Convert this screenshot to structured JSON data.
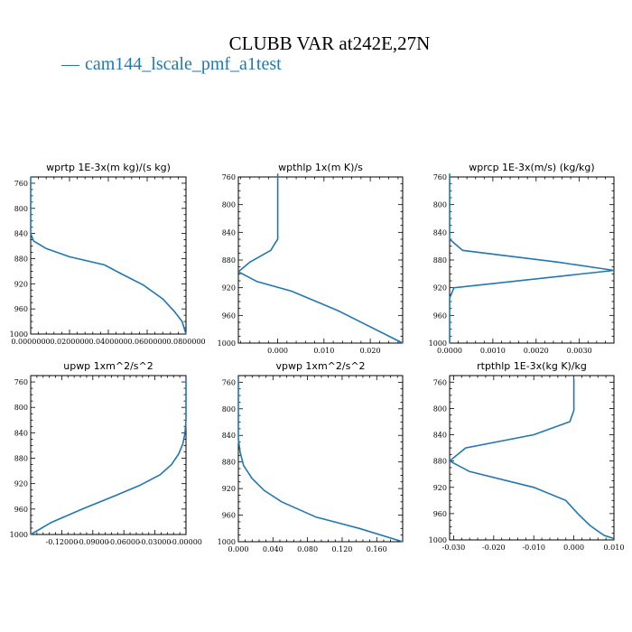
{
  "title": "CLUBB VAR at242E,27N",
  "legend": {
    "label": "cam144_lscale_pmf_a1test",
    "color": "#1f77b4"
  },
  "chart_data": [
    {
      "type": "line",
      "title": "wprtp  1E-3x(m kg)/(s kg)",
      "xlim": [
        0,
        0.08
      ],
      "ylim": [
        1000,
        750
      ],
      "xticks": [
        0,
        0.02,
        0.04,
        0.06,
        0.08
      ],
      "xtick_labels": [
        "0.0000000",
        "0.0200000",
        "0.0400000",
        "0.0600000",
        "0.0800000"
      ],
      "yticks": [
        760,
        800,
        840,
        880,
        920,
        960,
        1000
      ],
      "series": [
        {
          "x": [
            0.0,
            0.0,
            0.0015,
            0.008,
            0.02,
            0.038,
            0.046,
            0.058,
            0.068,
            0.074,
            0.078,
            0.08
          ],
          "y": [
            750,
            840,
            852,
            864,
            877,
            890,
            903,
            922,
            944,
            964,
            980,
            1000
          ]
        }
      ]
    },
    {
      "type": "line",
      "title": "wpthlp  1x(m K)/s",
      "xlim": [
        -0.0085,
        0.027
      ],
      "ylim": [
        1000,
        760
      ],
      "xticks": [
        0,
        0.01,
        0.02
      ],
      "xtick_labels": [
        "0.000",
        "0.010",
        "0.020"
      ],
      "yticks": [
        760,
        800,
        840,
        880,
        920,
        960,
        1000
      ],
      "series": [
        {
          "x": [
            0.0,
            0.0,
            -0.0005,
            -0.0015,
            -0.006,
            -0.0085,
            -0.0045,
            0.003,
            0.013,
            0.027
          ],
          "y": [
            755,
            850,
            855,
            866,
            883,
            897,
            911,
            925,
            953,
            1000
          ]
        }
      ]
    },
    {
      "type": "line",
      "title": "wprcp  1E-3x(m/s) (kg/kg)",
      "xlim": [
        0,
        0.0038
      ],
      "ylim": [
        1000,
        760
      ],
      "xticks": [
        0,
        0.001,
        0.002,
        0.003
      ],
      "xtick_labels": [
        "0.0000",
        "0.0010",
        "0.0020",
        "0.0030"
      ],
      "yticks": [
        760,
        800,
        840,
        880,
        920,
        960,
        1000
      ],
      "series": [
        {
          "x": [
            0.0,
            0.0,
            0.0003,
            0.0025,
            0.0038,
            0.0001,
            0.0,
            0.0
          ],
          "y": [
            755,
            850,
            866,
            883,
            895,
            920,
            935,
            1000
          ]
        }
      ]
    },
    {
      "type": "line",
      "title": "upwp  1xm^2/s^2",
      "xlim": [
        -0.15,
        0.0
      ],
      "ylim": [
        1000,
        750
      ],
      "xticks": [
        -0.12,
        -0.09,
        -0.06,
        -0.03,
        0.0
      ],
      "xtick_labels": [
        "-0.12000",
        "-0.09000",
        "-0.06000",
        "-0.03000",
        "-0.00000"
      ],
      "yticks": [
        760,
        800,
        840,
        880,
        920,
        960,
        1000
      ],
      "series": [
        {
          "x": [
            0.0,
            0.0,
            -0.001,
            -0.003,
            -0.007,
            -0.014,
            -0.025,
            -0.045,
            -0.07,
            -0.1,
            -0.13,
            -0.15
          ],
          "y": [
            755,
            820,
            840,
            857,
            873,
            890,
            906,
            923,
            940,
            960,
            981,
            1000
          ]
        }
      ]
    },
    {
      "type": "line",
      "title": "vpwp  1xm^2/s^2",
      "xlim": [
        0,
        0.19
      ],
      "ylim": [
        1000,
        750
      ],
      "xticks": [
        0,
        0.04,
        0.08,
        0.12,
        0.16
      ],
      "xtick_labels": [
        "0.000",
        "0.040",
        "0.080",
        "0.120",
        "0.160"
      ],
      "yticks": [
        760,
        800,
        840,
        880,
        920,
        960,
        1000
      ],
      "series": [
        {
          "x": [
            0.0,
            0.0,
            0.002,
            0.006,
            0.016,
            0.03,
            0.05,
            0.09,
            0.14,
            0.19
          ],
          "y": [
            755,
            845,
            865,
            885,
            905,
            923,
            940,
            963,
            980,
            1000
          ]
        }
      ]
    },
    {
      "type": "line",
      "title": "rtpthlp  1E-3x(kg K)/kg",
      "xlim": [
        -0.031,
        0.01
      ],
      "ylim": [
        1000,
        750
      ],
      "xticks": [
        -0.03,
        -0.02,
        -0.01,
        0.0,
        0.01
      ],
      "xtick_labels": [
        "-0.030",
        "-0.020",
        "-0.010",
        "0.000",
        "0.010"
      ],
      "yticks": [
        760,
        800,
        840,
        880,
        920,
        960,
        1000
      ],
      "series": [
        {
          "x": [
            0.0,
            0.0,
            -0.001,
            -0.01,
            -0.027,
            -0.031,
            -0.026,
            -0.01,
            -0.002,
            0.001,
            0.004,
            0.0075,
            0.01
          ],
          "y": [
            755,
            803,
            820,
            840,
            860,
            880,
            896,
            920,
            940,
            960,
            978,
            993,
            998
          ]
        }
      ]
    }
  ]
}
